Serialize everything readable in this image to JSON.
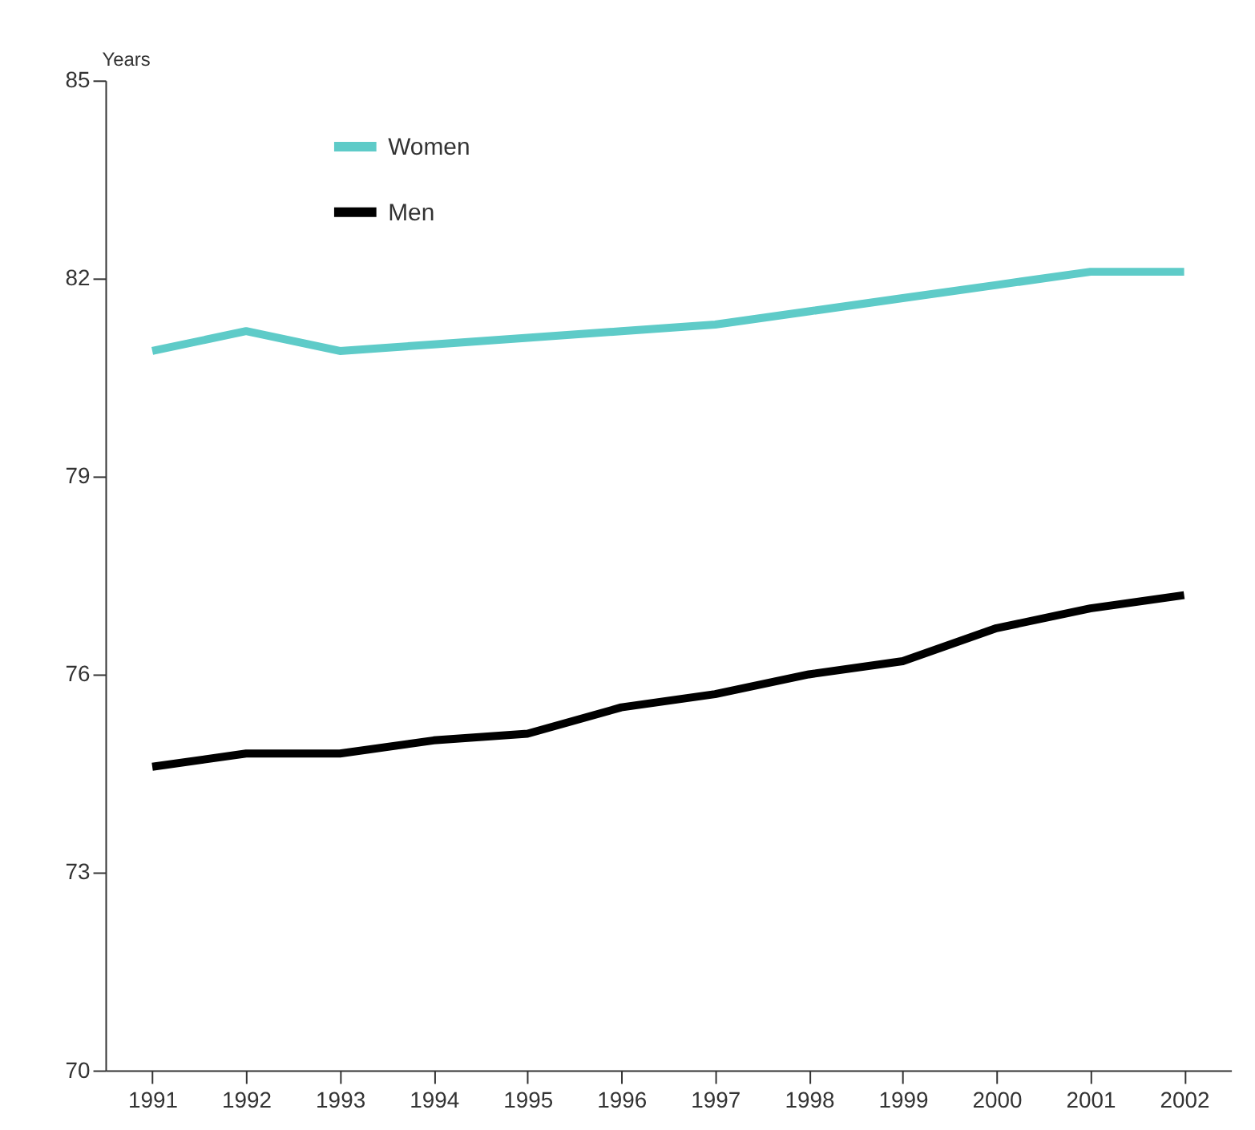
{
  "chart_data": {
    "type": "line",
    "ylabel": "Years",
    "categories": [
      "1991",
      "1992",
      "1993",
      "1994",
      "1995",
      "1996",
      "1997",
      "1998",
      "1999",
      "2000",
      "2001",
      "2002"
    ],
    "series": [
      {
        "name": "Women",
        "color": "#5ecbc8",
        "values": [
          80.9,
          81.2,
          80.9,
          81.0,
          81.1,
          81.2,
          81.3,
          81.5,
          81.7,
          81.9,
          82.1,
          82.1
        ]
      },
      {
        "name": "Men",
        "color": "#000000",
        "values": [
          74.6,
          74.8,
          74.8,
          75.0,
          75.1,
          75.5,
          75.7,
          76.0,
          76.2,
          76.7,
          77.0,
          77.2
        ]
      }
    ],
    "ylim": [
      70,
      85
    ],
    "yticks": [
      70,
      73,
      76,
      79,
      82,
      85
    ],
    "grid": false,
    "legend": "top left",
    "marker": "none",
    "line_style": "solid"
  }
}
